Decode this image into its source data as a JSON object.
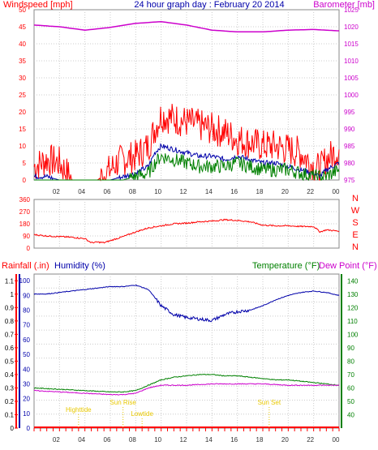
{
  "chart_data": [
    {
      "type": "line",
      "title": "24 hour graph day : February 20 2014",
      "left_axis_label": "Windspeed [mph]",
      "right_axis_label": "Barometer [mb]",
      "x_tick_labels": [
        "02",
        "04",
        "06",
        "08",
        "10",
        "12",
        "14",
        "16",
        "18",
        "20",
        "22",
        "00"
      ],
      "left_ticks": [
        "0",
        "5",
        "10",
        "15",
        "20",
        "25",
        "30",
        "35",
        "40",
        "45",
        "50"
      ],
      "right_ticks": [
        "975",
        "980",
        "985",
        "990",
        "995",
        "1000",
        "1005",
        "1010",
        "1015",
        "1020",
        "1025"
      ],
      "ylim_left": [
        0,
        50
      ],
      "ylim_right": [
        975,
        1025
      ],
      "grid": true,
      "colors": {
        "gust": "#ff0000",
        "average": "#0000aa",
        "speed": "#008000",
        "barometer": "#cc00cc"
      },
      "series": [
        {
          "axis": "left",
          "color": "#ff0000",
          "x": [
            0,
            1,
            2,
            3,
            4,
            5,
            6,
            6.5,
            7,
            8,
            9,
            9.5,
            10,
            11,
            12,
            13,
            14,
            15,
            16,
            17,
            18,
            19,
            20,
            21,
            22,
            22.5,
            23,
            24
          ],
          "values": [
            4,
            6,
            5,
            0,
            0,
            0,
            3,
            5,
            6,
            7,
            10,
            15,
            19,
            18,
            17,
            16,
            15,
            14,
            12,
            11,
            10,
            10,
            9,
            8,
            4,
            3,
            6,
            9
          ]
        },
        {
          "axis": "left",
          "color": "#0000aa",
          "x": [
            0,
            1,
            2,
            3,
            4,
            5,
            6,
            7,
            8,
            9,
            9.5,
            10,
            11,
            12,
            13,
            14,
            15,
            16,
            17,
            18,
            19,
            20,
            21,
            22,
            22.5,
            23,
            24
          ],
          "values": [
            1,
            1,
            0,
            0,
            0,
            0,
            0,
            1,
            2,
            4,
            8,
            10,
            9,
            8,
            7,
            7,
            6,
            7,
            6,
            5,
            5,
            4,
            3,
            2,
            1,
            3,
            5
          ]
        },
        {
          "axis": "left",
          "color": "#008000",
          "x": [
            0,
            7,
            8,
            9,
            9.5,
            10,
            11,
            12,
            13,
            14,
            15,
            16,
            17,
            18,
            19,
            20,
            21,
            22,
            23,
            24
          ],
          "values": [
            0,
            0,
            1,
            2,
            5,
            7,
            6,
            5,
            4,
            4,
            4,
            5,
            4,
            3,
            3,
            3,
            2,
            1,
            1,
            3
          ]
        },
        {
          "axis": "right",
          "color": "#cc00cc",
          "x": [
            0,
            2,
            4,
            6,
            8,
            10,
            12,
            14,
            16,
            18,
            20,
            22,
            24
          ],
          "values": [
            1020.5,
            1020.0,
            1019.0,
            1019.8,
            1021.0,
            1021.5,
            1020.5,
            1019.0,
            1018.5,
            1018.5,
            1019.0,
            1019.2,
            1018.8
          ]
        }
      ]
    },
    {
      "type": "line",
      "title": "",
      "left_ticks": [
        "360",
        "270",
        "180",
        "90",
        "0"
      ],
      "right_letters": [
        "N",
        "W",
        "S",
        "E",
        "N"
      ],
      "ylim": [
        0,
        360
      ],
      "x_tick_labels": [
        "02",
        "04",
        "06",
        "08",
        "10",
        "12",
        "14",
        "16",
        "18",
        "20",
        "22",
        "00"
      ],
      "colors": {
        "direction": "#ff0000"
      },
      "series": [
        {
          "color": "#ff0000",
          "x": [
            0,
            1,
            2,
            3,
            4,
            4.5,
            5,
            5.5,
            6,
            7,
            8,
            9,
            10,
            11,
            12,
            13,
            14,
            15,
            16,
            17,
            18,
            19,
            20,
            21,
            22,
            22.5,
            23,
            24
          ],
          "values": [
            100,
            90,
            85,
            80,
            70,
            40,
            45,
            40,
            55,
            85,
            120,
            150,
            165,
            180,
            185,
            195,
            200,
            210,
            205,
            195,
            170,
            165,
            165,
            160,
            160,
            120,
            135,
            125
          ]
        }
      ]
    },
    {
      "type": "line",
      "title": "",
      "labels": {
        "rain": "Rainfall (.in)",
        "humidity": "Humidity (%)",
        "temperature": "Temperature (°F)",
        "dewpoint": "Dew Point (°F)"
      },
      "rain_ticks": [
        "0",
        "0.1",
        "0.2",
        "0.3",
        "0.4",
        "0.5",
        "0.6",
        "0.7",
        "0.8",
        "0.9",
        "1",
        "1.1"
      ],
      "humidity_ticks": [
        "0",
        "10",
        "20",
        "30",
        "40",
        "50",
        "60",
        "70",
        "80",
        "90",
        "100"
      ],
      "temp_ticks": [
        "40",
        "50",
        "60",
        "70",
        "80",
        "90",
        "100",
        "110",
        "120",
        "130",
        "140"
      ],
      "temp_range": [
        30,
        145
      ],
      "humidity_range": [
        0,
        100
      ],
      "x_tick_labels": [
        "02",
        "04",
        "06",
        "08",
        "10",
        "12",
        "14",
        "16",
        "18",
        "20",
        "22",
        "00"
      ],
      "events": [
        {
          "label": "Highttide",
          "hour": 3.5
        },
        {
          "label": "Sun Rise",
          "hour": 7.0
        },
        {
          "label": "Lowtide",
          "hour": 8.5
        },
        {
          "label": "Sun Set",
          "hour": 18.5
        }
      ],
      "colors": {
        "humidity": "#0000aa",
        "temperature": "#008000",
        "dewpoint": "#cc00cc",
        "rain": "#ff0000",
        "events": "#e8c800"
      },
      "series": [
        {
          "name": "Humidity",
          "color": "#0000aa",
          "x": [
            0,
            1,
            2,
            3,
            4,
            5,
            6,
            7,
            8,
            9,
            10,
            11,
            12,
            13,
            14,
            14.5,
            15,
            16,
            17,
            18,
            19,
            20,
            21,
            22,
            23,
            24
          ],
          "values": [
            91,
            91,
            92,
            93,
            94,
            95,
            96,
            96,
            97,
            94,
            83,
            77,
            75,
            74,
            73,
            75,
            77,
            79,
            80,
            83,
            87,
            90,
            92,
            93,
            92,
            90
          ]
        },
        {
          "name": "Temperature",
          "color": "#008000",
          "x": [
            0,
            2,
            4,
            6,
            7,
            8,
            9,
            10,
            11,
            12,
            13,
            14,
            15,
            16,
            17,
            18,
            19,
            20,
            21,
            22,
            23,
            24
          ],
          "values": [
            60,
            59,
            58,
            57,
            57,
            58,
            62,
            66,
            68,
            69,
            70,
            70,
            69,
            69,
            68,
            67,
            66,
            66,
            65,
            64,
            63,
            62
          ]
        },
        {
          "name": "Dew Point",
          "color": "#cc00cc",
          "x": [
            0,
            2,
            4,
            6,
            7,
            8,
            9,
            10,
            11,
            12,
            14,
            16,
            18,
            20,
            22,
            24
          ],
          "values": [
            58,
            57,
            56,
            55,
            55,
            56,
            60,
            62,
            62,
            62,
            63,
            63,
            63,
            62,
            62,
            62
          ]
        },
        {
          "name": "Rainfall",
          "color": "#ff0000",
          "x": [
            0,
            24
          ],
          "values": [
            0,
            0
          ]
        }
      ]
    }
  ]
}
